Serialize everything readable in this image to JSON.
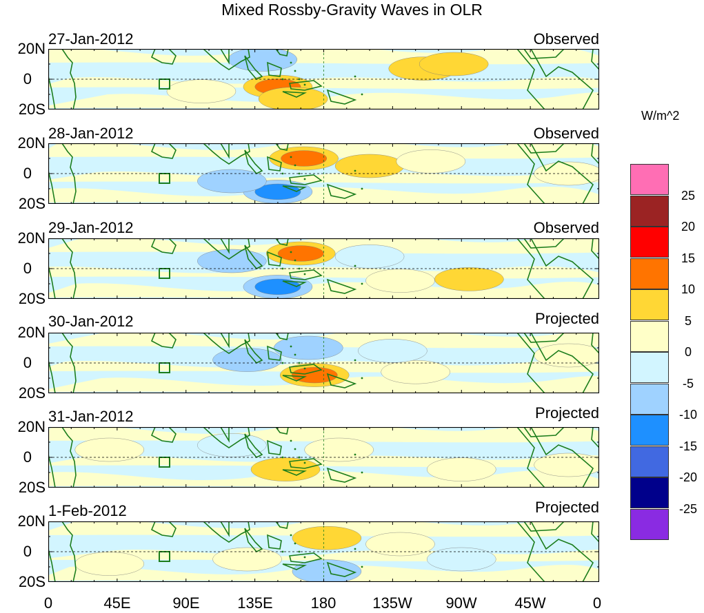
{
  "title": "Mixed Rossby-Gravity Waves in OLR",
  "panels": [
    {
      "date": "27-Jan-2012",
      "status": "Observed"
    },
    {
      "date": "28-Jan-2012",
      "status": "Observed"
    },
    {
      "date": "29-Jan-2012",
      "status": "Observed"
    },
    {
      "date": "30-Jan-2012",
      "status": "Projected"
    },
    {
      "date": "31-Jan-2012",
      "status": "Projected"
    },
    {
      "date": "1-Feb-2012",
      "status": "Projected"
    }
  ],
  "y_ticks": [
    "20N",
    "0",
    "20S"
  ],
  "x_ticks": [
    "0",
    "45E",
    "90E",
    "135E",
    "180",
    "135W",
    "90W",
    "45W",
    "0"
  ],
  "colorbar": {
    "units": "W/m^2",
    "labels": [
      "25",
      "20",
      "15",
      "10",
      "5",
      "0",
      "-5",
      "-10",
      "-15",
      "-20",
      "-25"
    ],
    "colors": [
      "#ff6eb4",
      "#9b2323",
      "#ff0000",
      "#ff7400",
      "#ffd735",
      "#ffffc8",
      "#d2f5ff",
      "#9fd2ff",
      "#1e90ff",
      "#4169e1",
      "#00008b",
      "#8a2be2"
    ]
  },
  "chart_data": {
    "type": "map",
    "variable": "OLR anomaly (Mixed Rossby-Gravity wave filtered)",
    "lon_range": [
      0,
      360
    ],
    "lat_range": [
      -20,
      20
    ],
    "contour_levels": [
      -25,
      -20,
      -15,
      -10,
      -5,
      0,
      5,
      10,
      15,
      20,
      25
    ],
    "anomalies": [
      [
        {
          "lon": 150,
          "lat": -5,
          "value": 12
        },
        {
          "lon": 140,
          "lat": 13,
          "value": -8
        },
        {
          "lon": 160,
          "lat": -13,
          "value": 6
        },
        {
          "lon": 245,
          "lat": 7,
          "value": 6
        },
        {
          "lon": 265,
          "lat": 10,
          "value": 5
        },
        {
          "lon": 100,
          "lat": -8,
          "value": 3
        }
      ],
      [
        {
          "lon": 167,
          "lat": 10,
          "value": 12
        },
        {
          "lon": 150,
          "lat": -12,
          "value": -10
        },
        {
          "lon": 210,
          "lat": 5,
          "value": 5
        },
        {
          "lon": 250,
          "lat": 8,
          "value": 4
        },
        {
          "lon": 120,
          "lat": -5,
          "value": -6
        },
        {
          "lon": 340,
          "lat": 0,
          "value": 3
        }
      ],
      [
        {
          "lon": 165,
          "lat": 10,
          "value": 11
        },
        {
          "lon": 150,
          "lat": -12,
          "value": -10
        },
        {
          "lon": 230,
          "lat": -8,
          "value": 4
        },
        {
          "lon": 275,
          "lat": -7,
          "value": 5
        },
        {
          "lon": 120,
          "lat": 5,
          "value": -5
        },
        {
          "lon": 210,
          "lat": 8,
          "value": -4
        }
      ],
      [
        {
          "lon": 174,
          "lat": -8,
          "value": 12
        },
        {
          "lon": 170,
          "lat": 10,
          "value": -9
        },
        {
          "lon": 130,
          "lat": 2,
          "value": -6
        },
        {
          "lon": 240,
          "lat": -6,
          "value": 4
        },
        {
          "lon": 340,
          "lat": 5,
          "value": 3
        },
        {
          "lon": 225,
          "lat": 8,
          "value": -4
        }
      ],
      [
        {
          "lon": 155,
          "lat": -8,
          "value": 7
        },
        {
          "lon": 190,
          "lat": 5,
          "value": 3
        },
        {
          "lon": 120,
          "lat": 8,
          "value": -4
        },
        {
          "lon": 270,
          "lat": -8,
          "value": 3
        },
        {
          "lon": 40,
          "lat": 5,
          "value": 3
        },
        {
          "lon": 340,
          "lat": -5,
          "value": 3
        }
      ],
      [
        {
          "lon": 182,
          "lat": 9,
          "value": 7
        },
        {
          "lon": 182,
          "lat": -13,
          "value": -7
        },
        {
          "lon": 130,
          "lat": -5,
          "value": 3
        },
        {
          "lon": 230,
          "lat": 5,
          "value": 3
        },
        {
          "lon": 270,
          "lat": -5,
          "value": -3
        },
        {
          "lon": 40,
          "lat": -8,
          "value": 3
        }
      ]
    ]
  }
}
